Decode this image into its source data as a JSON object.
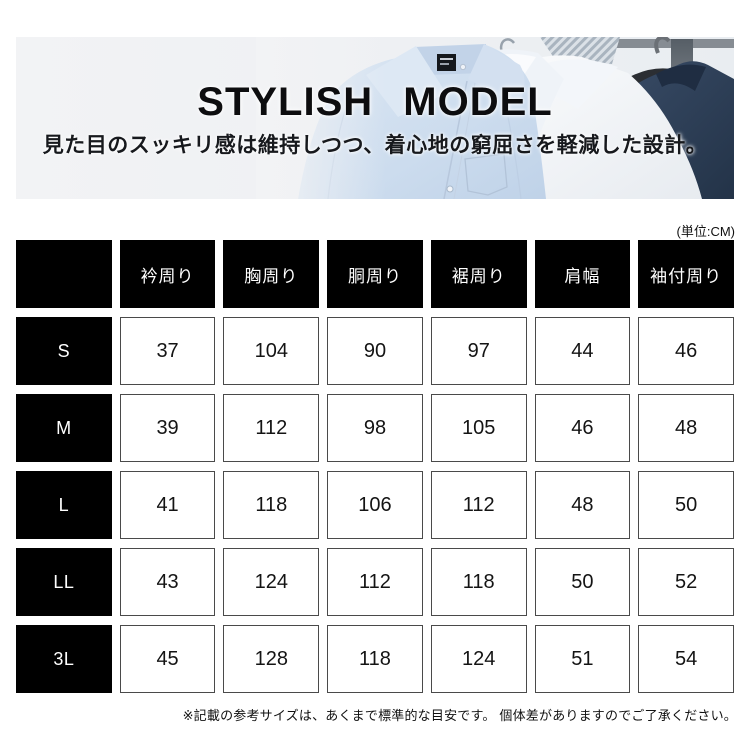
{
  "banner": {
    "title": "STYLISH MODEL",
    "subtitle": "見た目のスッキリ感は維持しつつ、着心地の窮屈さを軽減した設計。"
  },
  "unit_label": "(単位:CM)",
  "size_table": {
    "corner_label": "",
    "columns": [
      "衿周り",
      "胸周り",
      "胴周り",
      "裾周り",
      "肩幅",
      "袖付周り"
    ],
    "rows": [
      {
        "size": "S",
        "values": [
          37,
          104,
          90,
          97,
          44,
          46
        ]
      },
      {
        "size": "M",
        "values": [
          39,
          112,
          98,
          105,
          46,
          48
        ]
      },
      {
        "size": "L",
        "values": [
          41,
          118,
          106,
          112,
          48,
          50
        ]
      },
      {
        "size": "LL",
        "values": [
          43,
          124,
          112,
          118,
          50,
          52
        ]
      },
      {
        "size": "3L",
        "values": [
          45,
          128,
          118,
          124,
          51,
          54
        ]
      }
    ]
  },
  "footer_note": "※記載の参考サイズは、あくまで標準的な目安です。 個体差がありますのでご了承ください。",
  "colors": {
    "header_cell_bg": "#000000",
    "cell_border": "#4a4a4a",
    "banner_bg": "#f1f2f4",
    "jacket_navy": "#2e4057",
    "shirt_blue": "#ccdcee",
    "text": "#111111"
  }
}
